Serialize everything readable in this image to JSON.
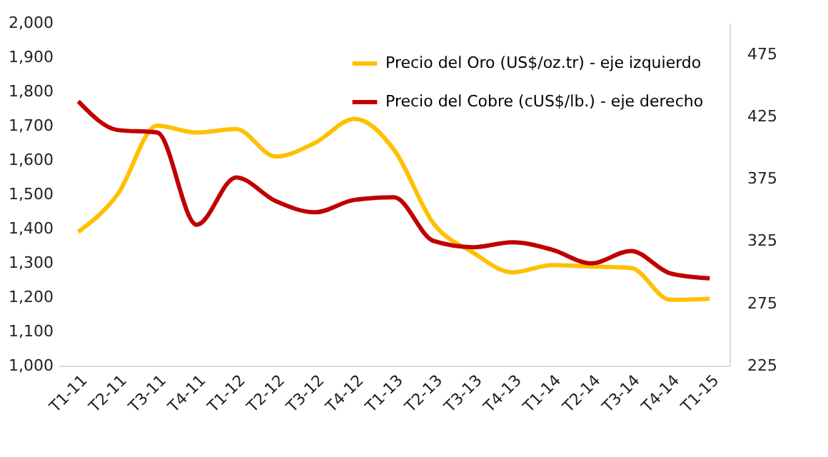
{
  "chart_data": {
    "type": "line",
    "categories": [
      "T1-11",
      "T2-11",
      "T3-11",
      "T4-11",
      "T1-12",
      "T2-12",
      "T3-12",
      "T4-12",
      "T1-13",
      "T2-13",
      "T3-13",
      "T4-13",
      "T1-14",
      "T2-14",
      "T3-14",
      "T4-14",
      "T1-15"
    ],
    "series": [
      {
        "name": "Precio del Oro (US$/oz.tr) - eje izquierdo",
        "color": "#ffc000",
        "values": [
          1390,
          1500,
          1700,
          1680,
          1690,
          1610,
          1650,
          1720,
          1630,
          1415,
          1330,
          1272,
          1293,
          1289,
          1285,
          1192,
          1195
        ]
      },
      {
        "name": "Precio del Cobre (cUS$/lb.) - eje derecho",
        "color": "#c00000",
        "axis": "y2",
        "values": [
          437,
          414,
          412,
          338,
          376,
          357,
          348,
          358,
          360,
          325,
          320,
          324,
          318,
          307,
          317,
          299,
          295
        ]
      }
    ],
    "ylim": [
      1000,
      2000
    ],
    "yticks": [
      {
        "value": 1000,
        "label": "1,000"
      },
      {
        "value": 1100,
        "label": "1,100"
      },
      {
        "value": 1200,
        "label": "1,200"
      },
      {
        "value": 1300,
        "label": "1,300"
      },
      {
        "value": 1400,
        "label": "1,400"
      },
      {
        "value": 1500,
        "label": "1,500"
      },
      {
        "value": 1600,
        "label": "1,600"
      },
      {
        "value": 1700,
        "label": "1,700"
      },
      {
        "value": 1800,
        "label": "1,800"
      },
      {
        "value": 1900,
        "label": "1,900"
      },
      {
        "value": 2000,
        "label": "2,000"
      }
    ],
    "y2lim": [
      225,
      500
    ],
    "y2ticks": [
      225,
      275,
      325,
      375,
      425,
      475
    ],
    "grid": false,
    "legend": "top right",
    "marker": "none",
    "line_style": "solid"
  }
}
